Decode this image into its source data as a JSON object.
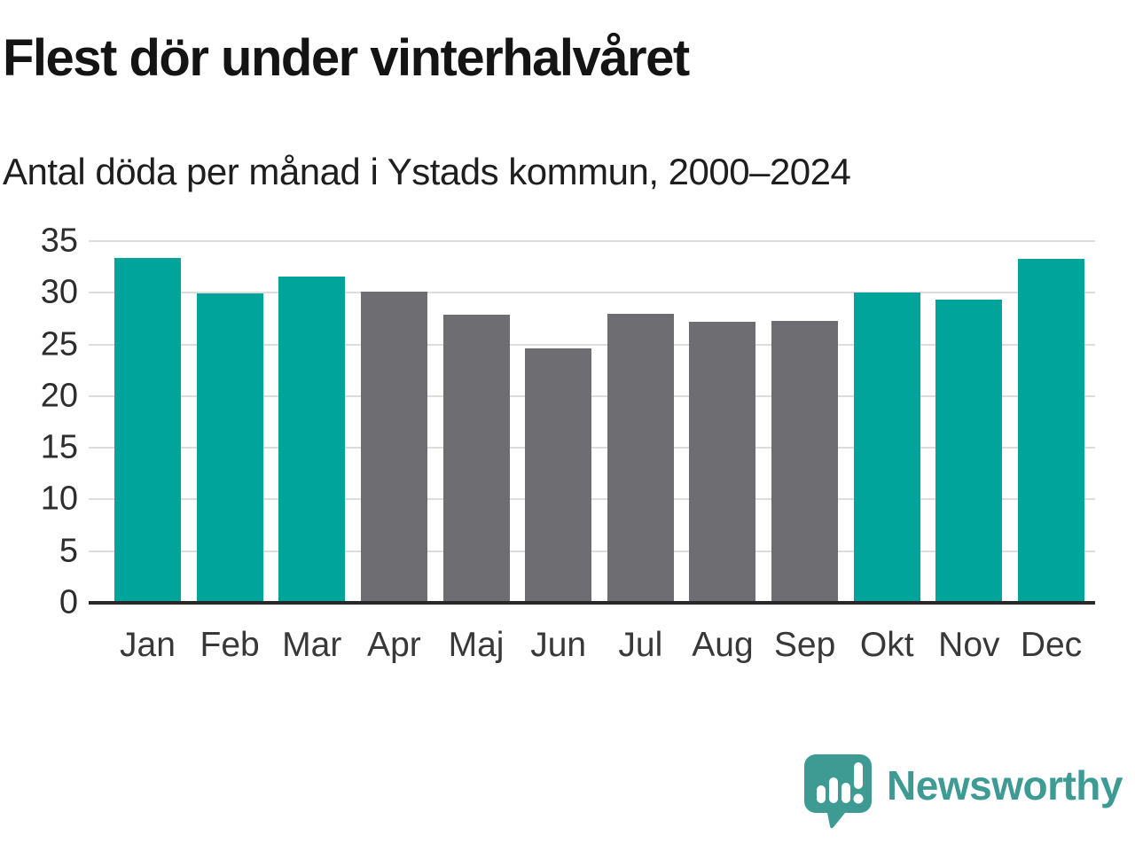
{
  "title": "Flest dör under vinterhalvåret",
  "subtitle": "Antal döda per månad i Ystads kommun, 2000–2024",
  "branding": {
    "logo_text": "Newsworthy",
    "logo_icon": "speech-bubble-bar-chart",
    "logo_color": "#3d9b94"
  },
  "colors": {
    "winter": "#00a49a",
    "summer": "#6d6d72",
    "grid": "#dcdcdc",
    "axis": "#282828",
    "tick_text": "#2d2d2d"
  },
  "chart_data": {
    "type": "bar",
    "title": "Flest dör under vinterhalvåret",
    "subtitle": "Antal döda per månad i Ystads kommun, 2000–2024",
    "categories": [
      "Jan",
      "Feb",
      "Mar",
      "Apr",
      "Maj",
      "Jun",
      "Jul",
      "Aug",
      "Sep",
      "Okt",
      "Nov",
      "Dec"
    ],
    "values": [
      33.4,
      29.9,
      31.6,
      30.1,
      27.9,
      24.6,
      28.0,
      27.2,
      27.3,
      30.0,
      29.3,
      33.3
    ],
    "series_color_keys": [
      "winter",
      "winter",
      "winter",
      "summer",
      "summer",
      "summer",
      "summer",
      "summer",
      "summer",
      "winter",
      "winter",
      "winter"
    ],
    "xlabel": "",
    "ylabel": "",
    "ylim": [
      0,
      35
    ],
    "yticks": [
      0,
      5,
      10,
      15,
      20,
      25,
      30,
      35
    ],
    "grid": true,
    "legend": false
  }
}
